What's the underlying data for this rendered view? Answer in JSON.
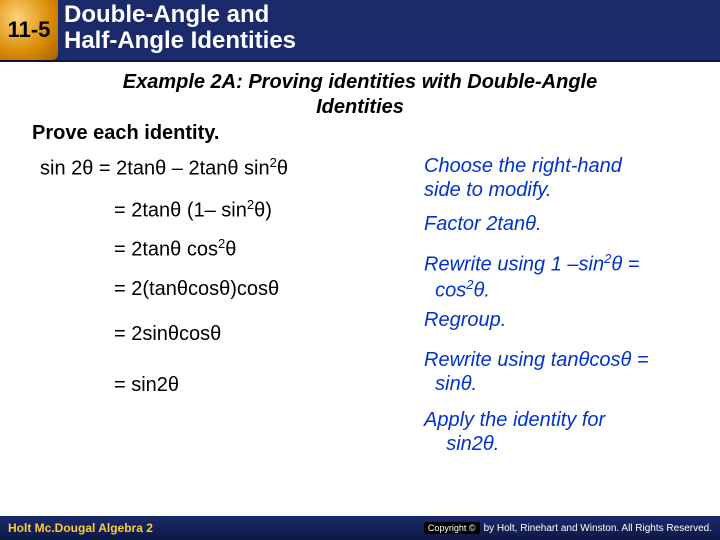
{
  "header": {
    "section_number": "11-5",
    "title_line1": "Double-Angle and",
    "title_line2": "Half-Angle Identities"
  },
  "example": {
    "title_line1": "Example 2A: Proving identities with Double-Angle",
    "title_line2": "Identities",
    "instruction": "Prove each identity."
  },
  "steps": {
    "s1_lhs": "sin 2θ = 2tanθ – 2tanθ sin",
    "s1_sup": "2",
    "s1_tail": "θ",
    "s1_expl_a": "Choose the right-hand",
    "s1_expl_b": "side to modify.",
    "s2_eq": "= 2tanθ (1– sin",
    "s2_sup": "2",
    "s2_tail": "θ)",
    "s2_expl": "Factor 2tanθ.",
    "s3_eq": "= 2tanθ cos",
    "s3_sup": "2",
    "s3_tail": "θ",
    "s3_expl_a": "Rewrite using 1 –sin",
    "s3_expl_sup": "2",
    "s3_expl_b": "θ =",
    "s3_expl_c": "cos",
    "s3_expl_sup2": "2",
    "s3_expl_d": "θ.",
    "s4_eq": "= 2(tanθcosθ)cosθ",
    "s4_expl": "Regroup.",
    "s5_eq": "= 2sinθcosθ",
    "s5_expl_a": "Rewrite using tanθcosθ =",
    "s5_expl_b": "sinθ.",
    "s6_eq": "= sin2θ",
    "s6_expl_a": "Apply the identity for",
    "s6_expl_b": "sin2θ."
  },
  "footer": {
    "left": "Holt Mc.Dougal Algebra 2",
    "right_badge": "Copyright ©",
    "right_text": "by Holt, Rinehart and Winston. All Rights Reserved."
  }
}
